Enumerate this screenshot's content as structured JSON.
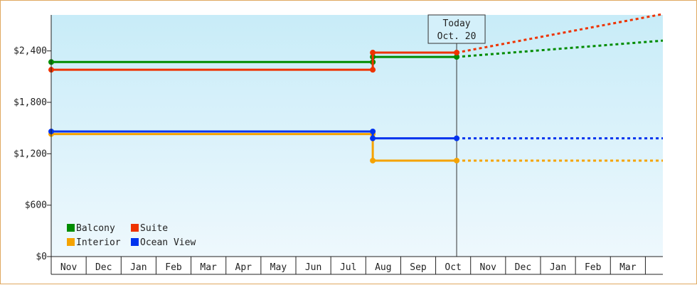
{
  "chart_data": {
    "type": "line",
    "step": true,
    "y_ticks": [
      "$0",
      "$600",
      "$1,200",
      "$1,800",
      "$2,400"
    ],
    "y_tick_values": [
      0,
      600,
      1200,
      1800,
      2400
    ],
    "ylim": [
      0,
      2820
    ],
    "x_categories": [
      "Nov",
      "Dec",
      "Jan",
      "Feb",
      "Mar",
      "Apr",
      "May",
      "Jun",
      "Jul",
      "Aug",
      "Sep",
      "Oct",
      "Nov",
      "Dec",
      "Jan",
      "Feb",
      "Mar"
    ],
    "today": {
      "line1": "Today",
      "line2": "Oct. 20",
      "x": 11.6
    },
    "legend_placement": "bottom-left",
    "series": [
      {
        "name": "Balcony",
        "color": "#008c00",
        "points": [
          [
            0,
            2270
          ],
          [
            9.2,
            2270
          ],
          [
            9.2,
            2330
          ],
          [
            11.6,
            2330
          ]
        ],
        "projection": [
          [
            11.6,
            2330
          ],
          [
            17.5,
            2520
          ]
        ]
      },
      {
        "name": "Suite",
        "color": "#ee3300",
        "points": [
          [
            0,
            2180
          ],
          [
            9.2,
            2180
          ],
          [
            9.2,
            2380
          ],
          [
            11.6,
            2380
          ]
        ],
        "projection": [
          [
            11.6,
            2380
          ],
          [
            17.5,
            2830
          ]
        ]
      },
      {
        "name": "Interior",
        "color": "#f5a300",
        "points": [
          [
            0,
            1430
          ],
          [
            9.2,
            1430
          ],
          [
            9.2,
            1120
          ],
          [
            11.6,
            1120
          ]
        ],
        "projection": [
          [
            11.6,
            1120
          ],
          [
            17.5,
            1120
          ]
        ]
      },
      {
        "name": "Ocean View",
        "color": "#0033ee",
        "points": [
          [
            0,
            1460
          ],
          [
            9.2,
            1460
          ],
          [
            9.2,
            1380
          ],
          [
            11.6,
            1380
          ]
        ],
        "projection": [
          [
            11.6,
            1380
          ],
          [
            17.5,
            1380
          ]
        ]
      }
    ]
  }
}
